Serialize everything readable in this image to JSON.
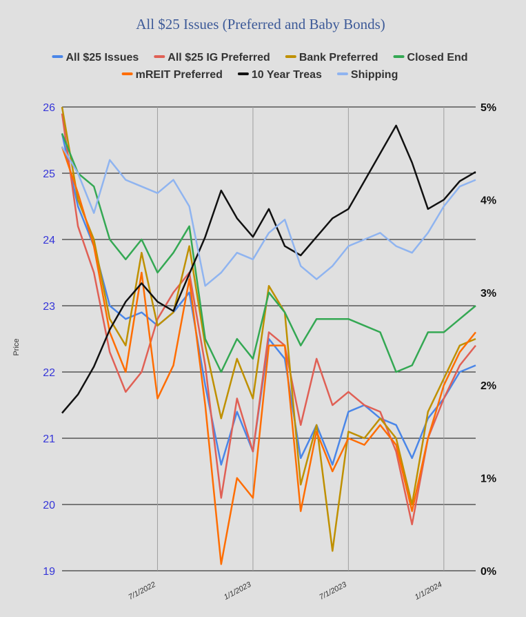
{
  "chart_data": {
    "type": "line",
    "title": "All $25 Issues (Preferred and Baby Bonds)",
    "ylabel": "Price",
    "ylim": [
      19,
      26
    ],
    "y2lim": [
      0,
      5
    ],
    "yticks": [
      "19",
      "20",
      "21",
      "22",
      "23",
      "24",
      "25",
      "26"
    ],
    "y2ticks": [
      "0%",
      "1%",
      "2%",
      "3%",
      "4%",
      "5%"
    ],
    "xticks": [
      "7/1/2022",
      "1/1/2023",
      "7/1/2023",
      "1/1/2024"
    ],
    "x": [
      "1/1/2022",
      "2/1/2022",
      "3/1/2022",
      "4/1/2022",
      "5/1/2022",
      "6/1/2022",
      "7/1/2022",
      "8/1/2022",
      "9/1/2022",
      "10/1/2022",
      "11/1/2022",
      "12/1/2022",
      "1/1/2023",
      "2/1/2023",
      "3/1/2023",
      "4/1/2023",
      "5/1/2023",
      "6/1/2023",
      "7/1/2023",
      "8/1/2023",
      "9/1/2023",
      "10/1/2023",
      "11/1/2023",
      "12/1/2023",
      "1/1/2024",
      "2/1/2024",
      "3/1/2024"
    ],
    "grid": true,
    "legend": "top",
    "series": [
      {
        "name": "All $25 Issues",
        "color": "#4a86e8",
        "axis": "left",
        "values": [
          25.6,
          24.5,
          23.9,
          23.0,
          22.8,
          22.9,
          22.7,
          22.9,
          23.2,
          21.8,
          20.6,
          21.4,
          20.8,
          22.5,
          22.2,
          20.7,
          21.2,
          20.6,
          21.4,
          21.5,
          21.3,
          21.2,
          20.7,
          21.3,
          21.6,
          22.0,
          22.1
        ]
      },
      {
        "name": "All $25 IG Preferred",
        "color": "#e06055",
        "axis": "left",
        "values": [
          25.9,
          24.2,
          23.5,
          22.3,
          21.7,
          22.0,
          22.8,
          23.2,
          23.5,
          22.1,
          20.1,
          21.6,
          20.8,
          22.6,
          22.4,
          21.2,
          22.2,
          21.5,
          21.7,
          21.5,
          21.4,
          20.8,
          19.7,
          21.0,
          21.6,
          22.1,
          22.4
        ]
      },
      {
        "name": "Bank Preferred",
        "color": "#bf9000",
        "axis": "left",
        "values": [
          26.0,
          24.6,
          24.0,
          22.8,
          22.4,
          23.8,
          22.7,
          22.9,
          23.9,
          22.4,
          21.3,
          22.2,
          21.6,
          23.3,
          22.9,
          20.3,
          21.2,
          19.3,
          21.1,
          21.0,
          21.3,
          21.0,
          20.0,
          21.4,
          21.9,
          22.4,
          22.5
        ]
      },
      {
        "name": "Closed End",
        "color": "#34a853",
        "axis": "left",
        "values": [
          25.6,
          25.0,
          24.8,
          24.0,
          23.7,
          24.0,
          23.5,
          23.8,
          24.2,
          22.5,
          22.0,
          22.5,
          22.2,
          23.2,
          22.9,
          22.4,
          22.8,
          22.8,
          22.8,
          22.7,
          22.6,
          22.0,
          22.1,
          22.6,
          22.6,
          22.8,
          23.0
        ]
      },
      {
        "name": "mREIT Preferred",
        "color": "#ff6d01",
        "axis": "left",
        "values": [
          25.4,
          24.7,
          23.9,
          22.6,
          22.0,
          23.5,
          21.6,
          22.1,
          23.4,
          21.5,
          19.1,
          20.4,
          20.1,
          22.4,
          22.4,
          19.9,
          21.1,
          20.5,
          21.0,
          20.9,
          21.2,
          20.9,
          19.9,
          21.0,
          21.8,
          22.3,
          22.6
        ]
      },
      {
        "name": "10 Year Treas",
        "color": "#111111",
        "axis": "right",
        "values": [
          1.7,
          1.9,
          2.2,
          2.6,
          2.9,
          3.1,
          2.9,
          2.8,
          3.2,
          3.6,
          4.1,
          3.8,
          3.6,
          3.9,
          3.5,
          3.4,
          3.6,
          3.8,
          3.9,
          4.2,
          4.5,
          4.8,
          4.4,
          3.9,
          4.0,
          4.2,
          4.3
        ]
      },
      {
        "name": "Shipping",
        "color": "#8fb4f0",
        "axis": "left",
        "values": [
          25.4,
          25.0,
          24.4,
          25.2,
          24.9,
          24.8,
          24.7,
          24.9,
          24.5,
          23.3,
          23.5,
          23.8,
          23.7,
          24.1,
          24.3,
          23.6,
          23.4,
          23.6,
          23.9,
          24.0,
          24.1,
          23.9,
          23.8,
          24.1,
          24.5,
          24.8,
          24.9
        ]
      }
    ]
  }
}
